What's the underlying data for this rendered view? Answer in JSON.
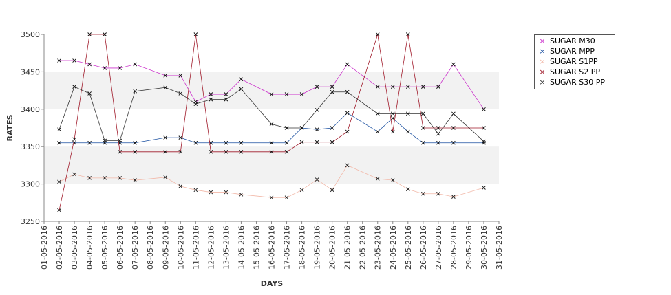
{
  "chart_data": {
    "type": "line",
    "title": "",
    "xlabel": "DAYS",
    "ylabel": "RATES",
    "ylim": [
      3250,
      3500
    ],
    "yticks": [
      3250,
      3300,
      3350,
      3400,
      3450,
      3500
    ],
    "grid_bands": true,
    "legend_position": "top-right",
    "categories": [
      "01-05-2016",
      "02-05-2016",
      "03-05-2016",
      "04-05-2016",
      "05-05-2016",
      "06-05-2016",
      "07-05-2016",
      "08-05-2016",
      "09-05-2016",
      "10-05-2016",
      "11-05-2016",
      "12-05-2016",
      "13-05-2016",
      "14-05-2016",
      "15-05-2016",
      "16-05-2016",
      "17-05-2016",
      "18-05-2016",
      "19-05-2016",
      "20-05-2016",
      "21-05-2016",
      "22-05-2016",
      "23-05-2016",
      "24-05-2016",
      "25-05-2016",
      "26-05-2016",
      "27-05-2016",
      "28-05-2016",
      "29-05-2016",
      "30-05-2016",
      "31-05-2016"
    ],
    "series": [
      {
        "name": "SUGAR M30",
        "color": "#cc33cc",
        "values": [
          null,
          3465,
          3465,
          3460,
          3455,
          3455,
          3460,
          null,
          3445,
          3445,
          3410,
          3420,
          3420,
          3440,
          null,
          3420,
          3420,
          3420,
          3430,
          3430,
          3460,
          null,
          3430,
          3430,
          3430,
          3430,
          3430,
          3460,
          null,
          3400,
          null
        ]
      },
      {
        "name": "SUGAR MPP",
        "color": "#1a4fa0",
        "values": [
          null,
          3355,
          3355,
          3355,
          3355,
          3355,
          3355,
          null,
          3362,
          3362,
          3355,
          3355,
          3355,
          3355,
          null,
          3355,
          3355,
          3375,
          3373,
          3375,
          3395,
          null,
          3370,
          3388,
          3370,
          3355,
          3355,
          3355,
          null,
          3355,
          null
        ]
      },
      {
        "name": "SUGAR S1PP",
        "color": "#f2b8a8",
        "values": [
          null,
          3303,
          3313,
          3308,
          3308,
          3308,
          3305,
          null,
          3309,
          3297,
          3292,
          3289,
          3289,
          3286,
          null,
          3282,
          3282,
          3292,
          3306,
          3292,
          3325,
          null,
          3307,
          3305,
          3293,
          3287,
          3287,
          3283,
          null,
          3295,
          null
        ]
      },
      {
        "name": "SUGAR S2 PP",
        "color": "#a01a2a",
        "values": [
          null,
          3265,
          3360,
          3500,
          3500,
          3343,
          3343,
          null,
          3343,
          3343,
          3500,
          3343,
          3343,
          3343,
          null,
          3343,
          3343,
          3356,
          3356,
          3356,
          3370,
          null,
          3500,
          3370,
          3500,
          3375,
          3375,
          3375,
          null,
          3375,
          null
        ]
      },
      {
        "name": "SUGAR S30 PP",
        "color": "#333333",
        "values": [
          null,
          3373,
          3430,
          3421,
          3358,
          3358,
          3424,
          null,
          3429,
          3421,
          3407,
          3413,
          3413,
          3427,
          null,
          3380,
          3375,
          3375,
          3399,
          3423,
          3423,
          null,
          3394,
          3394,
          3394,
          3394,
          3367,
          3394,
          null,
          3357,
          null
        ]
      }
    ]
  }
}
